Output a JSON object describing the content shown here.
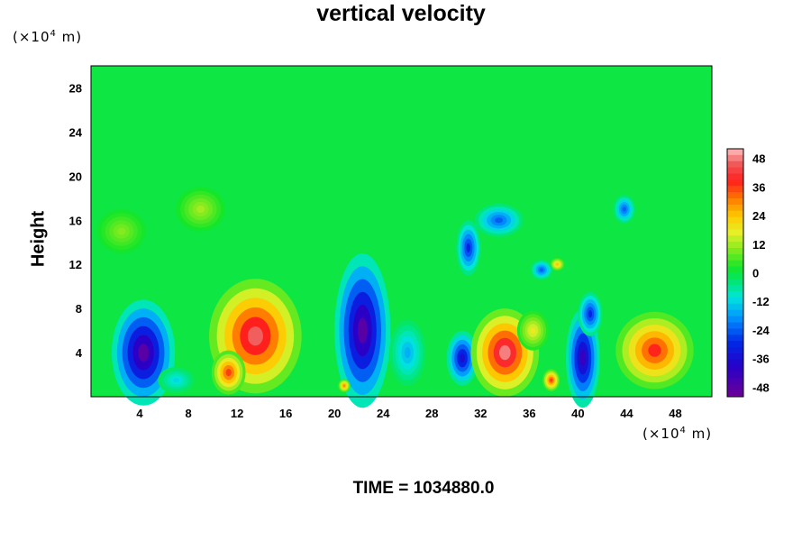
{
  "chart_data": {
    "type": "heatmap",
    "title": "vertical velocity",
    "ylabel": "Height",
    "x_unit": {
      "prefix": "(×10",
      "exp": "4",
      "suffix": " m)"
    },
    "y_unit": {
      "prefix": "(×10",
      "exp": "4",
      "suffix": " m)"
    },
    "xlim": [
      0,
      51
    ],
    "ylim": [
      0,
      30
    ],
    "x_ticks": [
      4,
      8,
      12,
      16,
      20,
      24,
      28,
      32,
      36,
      40,
      44,
      48
    ],
    "y_ticks": [
      4,
      8,
      12,
      16,
      20,
      24,
      28
    ],
    "colorbar": {
      "ticks": [
        48,
        36,
        24,
        12,
        0,
        -12,
        -24,
        -36,
        -48
      ],
      "range": [
        -52,
        52
      ]
    },
    "background_value": 0,
    "features": [
      {
        "x": 4.3,
        "y": 4.0,
        "rx": 2.6,
        "ry": 4.8,
        "value": -48
      },
      {
        "x": 13.5,
        "y": 5.5,
        "rx": 3.8,
        "ry": 5.2,
        "value": 46
      },
      {
        "x": 11.3,
        "y": 2.2,
        "rx": 1.4,
        "ry": 2.0,
        "value": 36
      },
      {
        "x": 22.3,
        "y": 6.0,
        "rx": 2.3,
        "ry": 7.0,
        "value": -48
      },
      {
        "x": 31.0,
        "y": 13.5,
        "rx": 1.0,
        "ry": 2.5,
        "value": -30
      },
      {
        "x": 33.5,
        "y": 16.0,
        "rx": 2.0,
        "ry": 1.5,
        "value": -24
      },
      {
        "x": 30.5,
        "y": 3.5,
        "rx": 1.3,
        "ry": 2.5,
        "value": -36
      },
      {
        "x": 34.0,
        "y": 4.0,
        "rx": 2.8,
        "ry": 4.0,
        "value": 48
      },
      {
        "x": 36.3,
        "y": 6.0,
        "rx": 1.3,
        "ry": 1.8,
        "value": 18
      },
      {
        "x": 37.8,
        "y": 1.5,
        "rx": 0.7,
        "ry": 1.0,
        "value": 36
      },
      {
        "x": 40.4,
        "y": 3.5,
        "rx": 1.4,
        "ry": 4.5,
        "value": -42
      },
      {
        "x": 46.3,
        "y": 4.2,
        "rx": 3.2,
        "ry": 3.5,
        "value": 38
      },
      {
        "x": 43.8,
        "y": 17.0,
        "rx": 0.9,
        "ry": 1.3,
        "value": -24
      },
      {
        "x": 38.3,
        "y": 12.0,
        "rx": 0.6,
        "ry": 0.6,
        "value": 24
      },
      {
        "x": 37.0,
        "y": 11.5,
        "rx": 0.9,
        "ry": 0.9,
        "value": -24
      },
      {
        "x": 20.8,
        "y": 1.0,
        "rx": 0.5,
        "ry": 0.6,
        "value": 30
      },
      {
        "x": 7.0,
        "y": 1.5,
        "rx": 1.5,
        "ry": 1.2,
        "value": -12
      },
      {
        "x": 26.0,
        "y": 4.0,
        "rx": 1.5,
        "ry": 3.0,
        "value": -16
      },
      {
        "x": 2.5,
        "y": 15.0,
        "rx": 2.0,
        "ry": 2.0,
        "value": 10
      },
      {
        "x": 9.0,
        "y": 17.0,
        "rx": 2.0,
        "ry": 2.0,
        "value": 12
      },
      {
        "x": 41.0,
        "y": 7.5,
        "rx": 1.0,
        "ry": 2.0,
        "value": -30
      }
    ]
  },
  "time_label": "TIME = 1034880.0"
}
